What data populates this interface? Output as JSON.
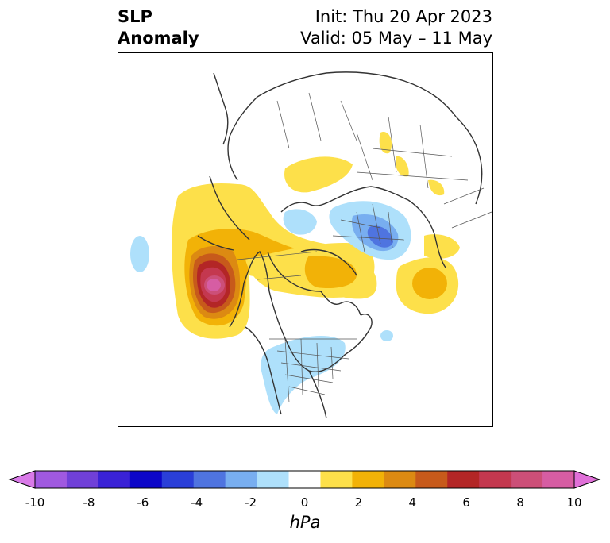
{
  "title": {
    "left_line1": "SLP",
    "left_line2": "Anomaly",
    "right_line1": "Init: Thu 20 Apr 2023",
    "right_line2": "Valid: 05 May – 11 May"
  },
  "colorbar": {
    "unit": "hPa",
    "range": [
      -10,
      10
    ],
    "extend": "both",
    "colors": [
      "#d97ae8",
      "#a059e0",
      "#7040d8",
      "#3a22d6",
      "#0c06c8",
      "#2a3fd8",
      "#4f74e0",
      "#78aef0",
      "#aee0fb",
      "#ffffff",
      "#fde04a",
      "#f2b207",
      "#dc8a12",
      "#c75a1b",
      "#b32626",
      "#c4384f",
      "#cc4f78",
      "#d65da3",
      "#e070d8"
    ],
    "tick_labels": [
      "-10",
      "-8",
      "-6",
      "-4",
      "-2",
      "0",
      "2",
      "4",
      "6",
      "8",
      "10"
    ]
  }
}
